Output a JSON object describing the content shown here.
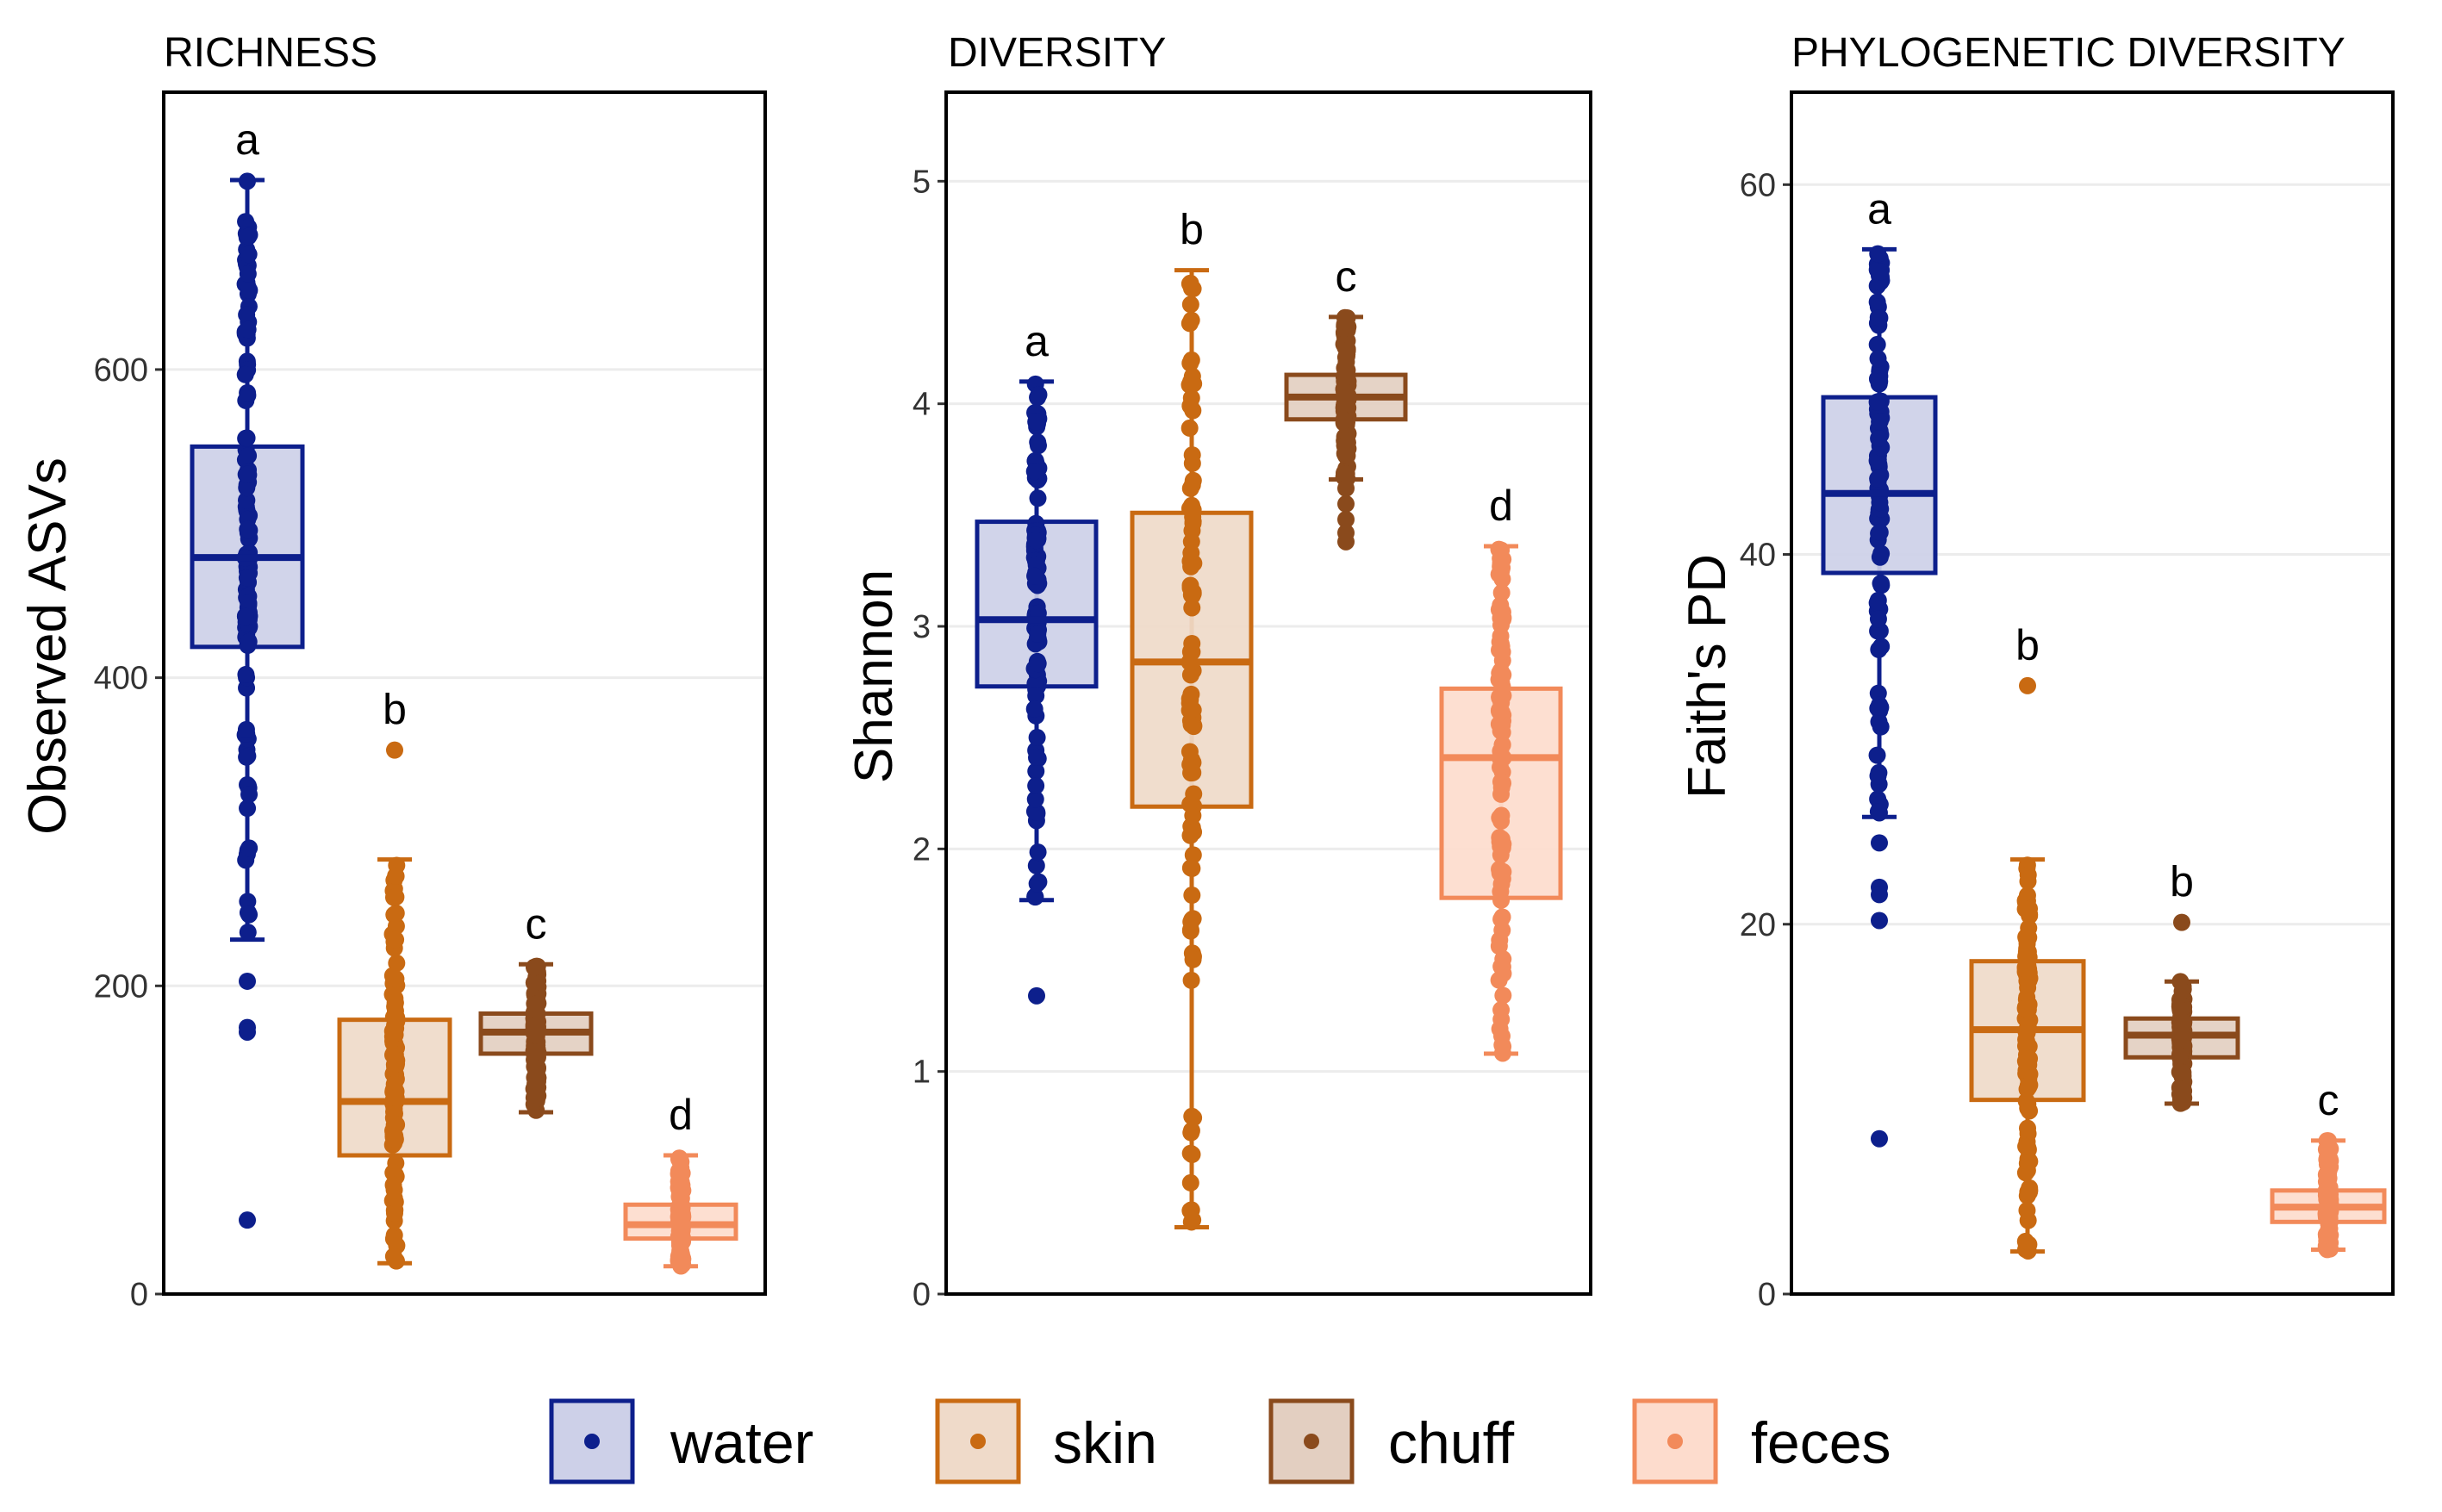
{
  "groups": [
    {
      "key": "water",
      "label": "water",
      "stroke": "#0d1f8c",
      "fill": "#cdd0e8",
      "point": "#0d1f8c"
    },
    {
      "key": "skin",
      "label": "skin",
      "stroke": "#c96a12",
      "fill": "#efdac9",
      "point": "#c96a12"
    },
    {
      "key": "chuff",
      "label": "chuff",
      "stroke": "#8a4a1c",
      "fill": "#e3cfc1",
      "point": "#8a4a1c"
    },
    {
      "key": "feces",
      "label": "feces",
      "stroke": "#f28a5a",
      "fill": "#fddccd",
      "point": "#f28a5a"
    }
  ],
  "chart_data": [
    {
      "type": "box",
      "title": "RICHNESS",
      "ylabel": "Observed ASVs",
      "ylim": [
        0,
        780
      ],
      "yticks": [
        0,
        200,
        400,
        600
      ],
      "boxes": [
        {
          "group": "water",
          "letter": "a",
          "whisker_low": 230,
          "q1": 420,
          "median": 478,
          "q3": 550,
          "whisker_high": 723,
          "outliers": [
            203,
            173,
            170,
            48
          ]
        },
        {
          "group": "skin",
          "letter": "b",
          "whisker_low": 20,
          "q1": 90,
          "median": 125,
          "q3": 178,
          "whisker_high": 282,
          "outliers": [
            353
          ]
        },
        {
          "group": "chuff",
          "letter": "c",
          "whisker_low": 118,
          "q1": 156,
          "median": 170,
          "q3": 182,
          "whisker_high": 214,
          "outliers": []
        },
        {
          "group": "feces",
          "letter": "d",
          "whisker_low": 18,
          "q1": 36,
          "median": 45,
          "q3": 58,
          "whisker_high": 90,
          "outliers": []
        }
      ]
    },
    {
      "type": "box",
      "title": "DIVERSITY",
      "ylabel": "Shannon",
      "ylim": [
        0,
        5.4
      ],
      "yticks": [
        0,
        1,
        2,
        3,
        4,
        5
      ],
      "boxes": [
        {
          "group": "water",
          "letter": "a",
          "whisker_low": 1.77,
          "q1": 2.73,
          "median": 3.03,
          "q3": 3.47,
          "whisker_high": 4.1,
          "outliers": [
            1.34
          ]
        },
        {
          "group": "skin",
          "letter": "b",
          "whisker_low": 0.3,
          "q1": 2.19,
          "median": 2.84,
          "q3": 3.51,
          "whisker_high": 4.6,
          "outliers": []
        },
        {
          "group": "chuff",
          "letter": "c",
          "whisker_low": 3.66,
          "q1": 3.93,
          "median": 4.03,
          "q3": 4.13,
          "whisker_high": 4.39,
          "outliers": [
            3.62,
            3.55,
            3.48,
            3.42,
            3.38
          ]
        },
        {
          "group": "feces",
          "letter": "d",
          "whisker_low": 1.08,
          "q1": 1.78,
          "median": 2.41,
          "q3": 2.72,
          "whisker_high": 3.36,
          "outliers": []
        }
      ]
    },
    {
      "type": "box",
      "title": "PHYLOGENETIC DIVERSITY",
      "ylabel": "Faith's PD",
      "ylim": [
        0,
        65
      ],
      "yticks": [
        0,
        20,
        40,
        60
      ],
      "boxes": [
        {
          "group": "water",
          "letter": "a",
          "whisker_low": 25.8,
          "q1": 39,
          "median": 43.3,
          "q3": 48.5,
          "whisker_high": 56.5,
          "outliers": [
            24.4,
            22,
            21.6,
            20.2,
            8.4
          ]
        },
        {
          "group": "skin",
          "letter": "b",
          "whisker_low": 2.3,
          "q1": 10.5,
          "median": 14.3,
          "q3": 18,
          "whisker_high": 23.5,
          "outliers": [
            32.9
          ]
        },
        {
          "group": "chuff",
          "letter": "b",
          "whisker_low": 10.3,
          "q1": 12.8,
          "median": 14,
          "q3": 14.9,
          "whisker_high": 16.9,
          "outliers": [
            20.1
          ]
        },
        {
          "group": "feces",
          "letter": "c",
          "whisker_low": 2.4,
          "q1": 3.9,
          "median": 4.7,
          "q3": 5.6,
          "whisker_high": 8.3,
          "outliers": []
        }
      ]
    }
  ]
}
